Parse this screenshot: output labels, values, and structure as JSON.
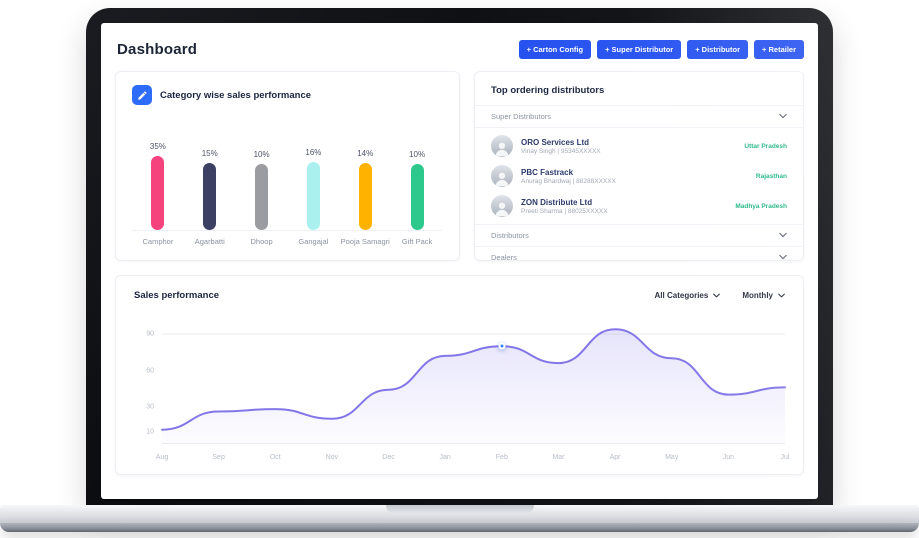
{
  "header": {
    "title": "Dashboard",
    "button_color": "#2450f0",
    "buttons": [
      {
        "label": "+ Carton Config"
      },
      {
        "label": "+ Super Distributor"
      },
      {
        "label": "+ Distributor"
      },
      {
        "label": "+ Retailer"
      }
    ]
  },
  "category_card": {
    "title": "Category wise sales performance",
    "icon": "edit-chart-icon",
    "icon_bg": "#2d6bfa"
  },
  "distributors_card": {
    "title": "Top ordering distributors",
    "region_color": "#1fb482",
    "sections": [
      {
        "label": "Super Distributors",
        "expanded": true
      },
      {
        "label": "Distributors",
        "expanded": false
      },
      {
        "label": "Dealers",
        "expanded": false
      }
    ],
    "items": [
      {
        "name": "ORO Services Ltd",
        "contact": "Vinay Singh | 95345XXXXX",
        "region": "Uttar Pradesh"
      },
      {
        "name": "PBC Fastrack",
        "contact": "Anurag Bhardwaj | 88288XXXXX",
        "region": "Rajasthan"
      },
      {
        "name": "ZON Distribute Ltd",
        "contact": "Preeti Sharma | 88025XXXXX",
        "region": "Madhya Pradesh"
      }
    ]
  },
  "sales_card": {
    "title": "Sales performance",
    "filters": [
      {
        "label": "All Categories"
      },
      {
        "label": "Monthly"
      }
    ]
  },
  "chart_data": [
    {
      "type": "bar",
      "title": "Category wise sales performance",
      "categories": [
        "Camphor",
        "Agarbatti",
        "Dhoop",
        "Gangajal",
        "Pooja Samagri",
        "Gift Pack"
      ],
      "values": [
        35,
        15,
        10,
        16,
        14,
        10
      ],
      "unit": "%",
      "colors": [
        "#f5437e",
        "#3c4063",
        "#9b9ba2",
        "#a9f0ee",
        "#ffb300",
        "#2dc98c"
      ]
    },
    {
      "type": "area",
      "title": "Sales performance",
      "x": [
        "Aug",
        "Sep",
        "Oct",
        "Nov",
        "Dec",
        "Jan",
        "Feb",
        "Mar",
        "Apr",
        "May",
        "Jun",
        "Jul"
      ],
      "values": [
        11,
        26,
        28,
        20,
        44,
        72,
        80,
        66,
        94,
        70,
        40,
        46
      ],
      "y_ticks": [
        90,
        60,
        30,
        10
      ],
      "ylim": [
        0,
        100
      ],
      "grid_tick": 90,
      "line_color": "#8276e8",
      "highlight": {
        "x": "Feb",
        "value": 80,
        "color": "#3b82f6"
      }
    }
  ]
}
